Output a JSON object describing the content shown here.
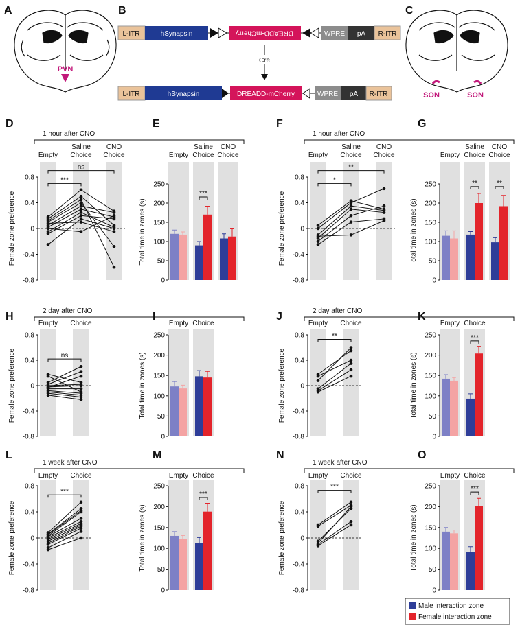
{
  "panels": {
    "A": {
      "label": "A",
      "region": "PVN"
    },
    "B": {
      "label": "B",
      "top": [
        "L-ITR",
        "hSynapsin",
        "DREADD-mCherry",
        "WPRE",
        "pA",
        "R-ITR"
      ],
      "recombinase": "Cre",
      "bottom": [
        "L-ITR",
        "hSynapsin",
        "DREADD-mCherry",
        "WPRE",
        "pA",
        "R-ITR"
      ]
    },
    "C": {
      "label": "C",
      "regions": [
        "SON",
        "SON"
      ]
    }
  },
  "legend": [
    {
      "name": "Male interaction zone",
      "color": "#2e3d98"
    },
    {
      "name": "Female interaction zone",
      "color": "#e3242b"
    }
  ],
  "chart_data": [
    {
      "type": "line",
      "panel": "D",
      "header": "1 hour after CNO",
      "ylabel": "Female zone preference",
      "categories": [
        [
          "Empty"
        ],
        [
          "Saline",
          "Choice"
        ],
        [
          "CNO",
          "Choice"
        ]
      ],
      "color": "#111111",
      "series": [
        {
          "values": [
            0.18,
            0.6,
            0.27
          ]
        },
        {
          "values": [
            0.15,
            0.5,
            0.05
          ]
        },
        {
          "values": [
            0.12,
            0.45,
            -0.6
          ]
        },
        {
          "values": [
            0.1,
            0.4,
            -0.28
          ]
        },
        {
          "values": [
            0.05,
            0.35,
            0.25
          ]
        },
        {
          "values": [
            0.02,
            0.3,
            0.18
          ]
        },
        {
          "values": [
            -0.05,
            0.25,
            0.02
          ]
        },
        {
          "values": [
            -0.08,
            0.2,
            0.15
          ]
        },
        {
          "values": [
            -0.25,
            0.15,
            0.0
          ]
        },
        {
          "values": [
            0.08,
            0.1,
            -0.05
          ]
        },
        {
          "values": [
            0.0,
            -0.05,
            0.2
          ]
        }
      ],
      "ylim": [
        -0.8,
        0.8
      ],
      "yticks": [
        0.8,
        0.4,
        0,
        -0.4,
        -0.8
      ],
      "zero_line": true,
      "column_shading": "#e0e0e0",
      "annotations": [
        {
          "from": 0,
          "to": 1,
          "y": 0.7,
          "text": "***"
        },
        {
          "from": 0,
          "to": 2,
          "y": 0.9,
          "text": "ns"
        }
      ]
    },
    {
      "type": "bar",
      "panel": "E",
      "ylabel": "Total time in zones (s)",
      "categories": [
        [
          "Empty"
        ],
        [
          "Saline",
          "Choice"
        ],
        [
          "CNO",
          "Choice"
        ]
      ],
      "series": [
        {
          "values": [
            120,
            90,
            108
          ],
          "errors": [
            10,
            10,
            12
          ],
          "colors": [
            "#7d80c6",
            "#2e3d98",
            "#2e3d98"
          ]
        },
        {
          "values": [
            118,
            170,
            113
          ],
          "errors": [
            7,
            22,
            20
          ],
          "colors": [
            "#f4a3a3",
            "#e3242b",
            "#e3242b"
          ]
        }
      ],
      "ylim": [
        0,
        250
      ],
      "yticks": [
        0,
        50,
        100,
        150,
        200,
        250
      ],
      "column_shading": "#e0e0e0",
      "annotations": [
        {
          "from": 1,
          "to": 1,
          "y": 216,
          "text": "***"
        }
      ]
    },
    {
      "type": "line",
      "panel": "F",
      "header": "1 hour after CNO",
      "ylabel": "Female zone preference",
      "categories": [
        [
          "Empty"
        ],
        [
          "Saline",
          "Choice"
        ],
        [
          "CNO",
          "Choice"
        ]
      ],
      "color": "#111111",
      "series": [
        {
          "values": [
            0.05,
            0.43,
            0.3
          ]
        },
        {
          "values": [
            0.0,
            0.4,
            0.62
          ]
        },
        {
          "values": [
            -0.1,
            0.35,
            0.28
          ]
        },
        {
          "values": [
            -0.15,
            0.3,
            0.25
          ]
        },
        {
          "values": [
            -0.2,
            0.2,
            0.35
          ]
        },
        {
          "values": [
            -0.25,
            0.1,
            0.15
          ]
        },
        {
          "values": [
            -0.12,
            -0.1,
            0.12
          ]
        }
      ],
      "ylim": [
        -0.8,
        0.8
      ],
      "yticks": [
        0.8,
        0.4,
        0,
        -0.4,
        -0.8
      ],
      "zero_line": true,
      "column_shading": "#e0e0e0",
      "annotations": [
        {
          "from": 0,
          "to": 1,
          "y": 0.7,
          "text": "*"
        },
        {
          "from": 0,
          "to": 2,
          "y": 0.9,
          "text": "**"
        }
      ]
    },
    {
      "type": "bar",
      "panel": "G",
      "ylabel": "Total time in zones (s)",
      "categories": [
        [
          "Empty"
        ],
        [
          "Saline",
          "Choice"
        ],
        [
          "CNO",
          "Choice"
        ]
      ],
      "series": [
        {
          "values": [
            115,
            118,
            98
          ],
          "errors": [
            13,
            8,
            12
          ],
          "colors": [
            "#7d80c6",
            "#2e3d98",
            "#2e3d98"
          ]
        },
        {
          "values": [
            108,
            200,
            192
          ],
          "errors": [
            20,
            25,
            28
          ],
          "colors": [
            "#f4a3a3",
            "#e3242b",
            "#e3242b"
          ]
        }
      ],
      "ylim": [
        0,
        250
      ],
      "yticks": [
        0,
        50,
        100,
        150,
        200,
        250
      ],
      "column_shading": "#e0e0e0",
      "annotations": [
        {
          "from": 1,
          "to": 1,
          "y": 243,
          "text": "**"
        },
        {
          "from": 2,
          "to": 2,
          "y": 243,
          "text": "**"
        }
      ]
    },
    {
      "type": "line",
      "panel": "H",
      "header": "2 day after CNO",
      "ylabel": "Female zone preference",
      "categories": [
        [
          "Empty"
        ],
        [
          "Choice"
        ]
      ],
      "color": "#111111",
      "series": [
        {
          "values": [
            0.18,
            0.05
          ]
        },
        {
          "values": [
            0.15,
            -0.1
          ]
        },
        {
          "values": [
            0.05,
            0.3
          ]
        },
        {
          "values": [
            0.02,
            0.22
          ]
        },
        {
          "values": [
            0.0,
            0.02
          ]
        },
        {
          "values": [
            -0.02,
            0.0
          ]
        },
        {
          "values": [
            -0.05,
            -0.05
          ]
        },
        {
          "values": [
            -0.08,
            -0.12
          ]
        },
        {
          "values": [
            -0.1,
            -0.15
          ]
        },
        {
          "values": [
            -0.12,
            -0.18
          ]
        },
        {
          "values": [
            -0.15,
            -0.22
          ]
        },
        {
          "values": [
            -0.03,
            0.15
          ]
        }
      ],
      "ylim": [
        -0.8,
        0.8
      ],
      "yticks": [
        0.8,
        0.4,
        0,
        -0.4,
        -0.8
      ],
      "zero_line": true,
      "column_shading": "#e0e0e0",
      "annotations": [
        {
          "from": 0,
          "to": 1,
          "y": 0.42,
          "text": "ns"
        }
      ]
    },
    {
      "type": "bar",
      "panel": "I",
      "ylabel": "Total time in zones (s)",
      "categories": [
        [
          "Empty"
        ],
        [
          "Choice"
        ]
      ],
      "series": [
        {
          "values": [
            123,
            148
          ],
          "errors": [
            12,
            14
          ],
          "colors": [
            "#7d80c6",
            "#2e3d98"
          ]
        },
        {
          "values": [
            118,
            145
          ],
          "errors": [
            8,
            15
          ],
          "colors": [
            "#f4a3a3",
            "#e3242b"
          ]
        }
      ],
      "ylim": [
        0,
        250
      ],
      "yticks": [
        0,
        50,
        100,
        150,
        200,
        250
      ],
      "column_shading": "#e0e0e0",
      "annotations": []
    },
    {
      "type": "line",
      "panel": "J",
      "header": "2 day after CNO",
      "ylabel": "Female zone preference",
      "categories": [
        [
          "Empty"
        ],
        [
          "Choice"
        ]
      ],
      "color": "#111111",
      "series": [
        {
          "values": [
            0.18,
            0.55
          ]
        },
        {
          "values": [
            0.15,
            0.4
          ]
        },
        {
          "values": [
            0.08,
            0.6
          ]
        },
        {
          "values": [
            -0.05,
            0.35
          ]
        },
        {
          "values": [
            -0.08,
            0.25
          ]
        },
        {
          "values": [
            -0.1,
            0.15
          ]
        }
      ],
      "ylim": [
        -0.8,
        0.8
      ],
      "yticks": [
        0.8,
        0.4,
        0,
        -0.4,
        -0.8
      ],
      "zero_line": true,
      "column_shading": "#e0e0e0",
      "annotations": [
        {
          "from": 0,
          "to": 1,
          "y": 0.73,
          "text": "**"
        }
      ]
    },
    {
      "type": "bar",
      "panel": "K",
      "ylabel": "Total time in zones (s)",
      "categories": [
        [
          "Empty"
        ],
        [
          "Choice"
        ]
      ],
      "series": [
        {
          "values": [
            142,
            93
          ],
          "errors": [
            10,
            12
          ],
          "colors": [
            "#7d80c6",
            "#2e3d98"
          ]
        },
        {
          "values": [
            137,
            204
          ],
          "errors": [
            8,
            18
          ],
          "colors": [
            "#f4a3a3",
            "#e3242b"
          ]
        }
      ],
      "ylim": [
        0,
        250
      ],
      "yticks": [
        0,
        50,
        100,
        150,
        200,
        250
      ],
      "column_shading": "#e0e0e0",
      "annotations": [
        {
          "from": 1,
          "to": 1,
          "y": 235,
          "text": "***"
        }
      ]
    },
    {
      "type": "line",
      "panel": "L",
      "header": "1 week after CNO",
      "ylabel": "Female zone preference",
      "categories": [
        [
          "Empty"
        ],
        [
          "Choice"
        ]
      ],
      "color": "#111111",
      "series": [
        {
          "values": [
            0.08,
            0.55
          ]
        },
        {
          "values": [
            0.05,
            0.42
          ]
        },
        {
          "values": [
            0.03,
            0.4
          ]
        },
        {
          "values": [
            0.02,
            0.3
          ]
        },
        {
          "values": [
            0.0,
            0.25
          ]
        },
        {
          "values": [
            -0.02,
            0.22
          ]
        },
        {
          "values": [
            -0.05,
            0.2
          ]
        },
        {
          "values": [
            -0.08,
            0.18
          ]
        },
        {
          "values": [
            -0.1,
            0.15
          ]
        },
        {
          "values": [
            -0.15,
            0.1
          ]
        },
        {
          "values": [
            -0.18,
            0.0
          ]
        },
        {
          "values": [
            0.06,
            0.45
          ]
        }
      ],
      "ylim": [
        -0.8,
        0.8
      ],
      "yticks": [
        0.8,
        0.4,
        0,
        -0.4,
        -0.8
      ],
      "zero_line": true,
      "column_shading": "#e0e0e0",
      "annotations": [
        {
          "from": 0,
          "to": 1,
          "y": 0.66,
          "text": "***"
        }
      ]
    },
    {
      "type": "bar",
      "panel": "M",
      "ylabel": "Total time in zones (s)",
      "categories": [
        [
          "Empty"
        ],
        [
          "Choice"
        ]
      ],
      "series": [
        {
          "values": [
            130,
            112
          ],
          "errors": [
            10,
            14
          ],
          "colors": [
            "#7d80c6",
            "#2e3d98"
          ]
        },
        {
          "values": [
            122,
            188
          ],
          "errors": [
            9,
            20
          ],
          "colors": [
            "#f4a3a3",
            "#e3242b"
          ]
        }
      ],
      "ylim": [
        0,
        250
      ],
      "yticks": [
        0,
        50,
        100,
        150,
        200,
        250
      ],
      "column_shading": "#e0e0e0",
      "annotations": [
        {
          "from": 1,
          "to": 1,
          "y": 222,
          "text": "***"
        }
      ]
    },
    {
      "type": "line",
      "panel": "N",
      "header": "1 week after CNO",
      "ylabel": "Female zone preference",
      "categories": [
        [
          "Empty"
        ],
        [
          "Choice"
        ]
      ],
      "color": "#111111",
      "series": [
        {
          "values": [
            0.2,
            0.55
          ]
        },
        {
          "values": [
            0.18,
            0.5
          ]
        },
        {
          "values": [
            -0.08,
            0.48
          ]
        },
        {
          "values": [
            -0.1,
            0.25
          ]
        },
        {
          "values": [
            -0.12,
            0.2
          ]
        },
        {
          "values": [
            -0.05,
            0.45
          ]
        }
      ],
      "ylim": [
        -0.8,
        0.8
      ],
      "yticks": [
        0.8,
        0.4,
        0,
        -0.4,
        -0.8
      ],
      "zero_line": true,
      "column_shading": "#e0e0e0",
      "annotations": [
        {
          "from": 0,
          "to": 1,
          "y": 0.73,
          "text": "***"
        }
      ]
    },
    {
      "type": "bar",
      "panel": "O",
      "ylabel": "Total time in zones (s)",
      "categories": [
        [
          "Empty"
        ],
        [
          "Choice"
        ]
      ],
      "series": [
        {
          "values": [
            140,
            92
          ],
          "errors": [
            10,
            12
          ],
          "colors": [
            "#7d80c6",
            "#2e3d98"
          ]
        },
        {
          "values": [
            136,
            202
          ],
          "errors": [
            8,
            18
          ],
          "colors": [
            "#f4a3a3",
            "#e3242b"
          ]
        }
      ],
      "ylim": [
        0,
        250
      ],
      "yticks": [
        0,
        50,
        100,
        150,
        200,
        250
      ],
      "column_shading": "#e0e0e0",
      "annotations": [
        {
          "from": 1,
          "to": 1,
          "y": 235,
          "text": "***"
        }
      ]
    }
  ]
}
